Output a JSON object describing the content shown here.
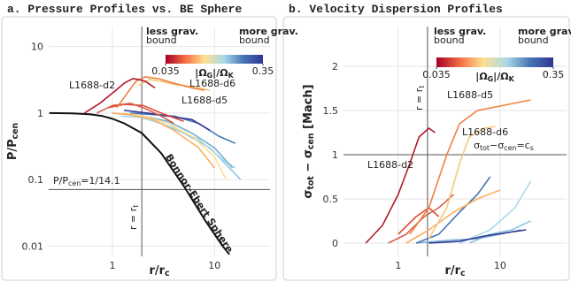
{
  "chart_data": [
    {
      "type": "line",
      "title": "a. Pressure Profiles vs. BE Sphere",
      "x_label": [
        "r/r",
        "c"
      ],
      "y_label": [
        "P/P",
        "cen"
      ],
      "log_x": true,
      "log_y": true,
      "grid": true,
      "xlim": [
        0.237,
        35
      ],
      "ylim": [
        0.007,
        20
      ],
      "xticks": [
        1,
        10
      ],
      "yticks": [
        0.01,
        0.1,
        1,
        10
      ],
      "vline": {
        "value": 1.94,
        "label": [
          "r = r",
          "t"
        ]
      },
      "hline": {
        "value": 0.0709,
        "label": [
          "P/P",
          "cen",
          "=1/14.1"
        ]
      },
      "colorbar": {
        "colors": [
          "#a50026",
          "#f46d43",
          "#fee090",
          "#abd9e9",
          "#4575b4",
          "#313695"
        ],
        "lim": [
          0.035,
          0.35
        ],
        "ticks": [
          0.035,
          0.35
        ],
        "left_label": [
          "less grav.",
          "bound"
        ],
        "right_label": [
          "more grav.",
          "bound"
        ],
        "label": [
          "|Ω",
          "G",
          "|/Ω",
          "K"
        ]
      },
      "annotations": [
        {
          "text": "L1688-d2",
          "color": "#b2182b"
        },
        {
          "text": "L1688-d6",
          "color": "#f6c87a"
        },
        {
          "text": "L1688-d5",
          "color": "#f08040"
        },
        {
          "text": "Bonnor-Ebert Sphere",
          "color": "#111111"
        }
      ],
      "series": [
        {
          "color": "#111111",
          "x": [
            0.24,
            0.4,
            0.6,
            0.8,
            1,
            1.3,
            1.94,
            3,
            5,
            8,
            12,
            14
          ],
          "values": [
            1,
            0.99,
            0.96,
            0.9,
            0.82,
            0.7,
            0.5,
            0.25,
            0.08,
            0.025,
            0.01,
            0.0075
          ]
        },
        {
          "color": "#92c5de",
          "x": [
            1.5,
            3,
            5,
            9,
            14,
            18
          ],
          "values": [
            0.95,
            0.7,
            0.5,
            0.3,
            0.15,
            0.1
          ]
        },
        {
          "color": "#abd9e9",
          "x": [
            1.2,
            2,
            4,
            7,
            12,
            16
          ],
          "values": [
            0.9,
            0.85,
            0.6,
            0.4,
            0.2,
            0.15
          ]
        },
        {
          "color": "#74add1",
          "x": [
            1,
            2,
            3.5,
            6,
            10,
            15
          ],
          "values": [
            1.0,
            0.9,
            0.75,
            0.5,
            0.3,
            0.15
          ]
        },
        {
          "color": "#4575b4",
          "x": [
            1.5,
            2.5,
            4,
            7,
            11,
            16
          ],
          "values": [
            1.0,
            0.95,
            0.9,
            0.7,
            0.45,
            0.35
          ]
        },
        {
          "color": "#313695",
          "x": [
            1.3,
            2.2,
            3.5,
            6,
            9
          ],
          "values": [
            1.1,
            1.0,
            0.9,
            0.8,
            0.55
          ]
        },
        {
          "color": "#fee090",
          "x": [
            1.3,
            2,
            3.5,
            6,
            10,
            13
          ],
          "values": [
            1.0,
            0.9,
            0.7,
            0.45,
            0.22,
            0.1
          ]
        },
        {
          "color": "#fdae61",
          "x": [
            1,
            1.5,
            2.5,
            4,
            7,
            10
          ],
          "values": [
            1.0,
            0.95,
            0.8,
            0.55,
            0.3,
            0.15
          ]
        },
        {
          "color": "#e34a33",
          "x": [
            0.9,
            1.3,
            2,
            3,
            5
          ],
          "values": [
            1.2,
            1.35,
            1.3,
            1.0,
            0.75
          ]
        },
        {
          "color": "#d6604d",
          "x": [
            0.7,
            1,
            1.5,
            2,
            3,
            4
          ],
          "values": [
            1.0,
            1.3,
            1.4,
            1.2,
            0.9,
            0.7
          ]
        },
        {
          "color": "#f6c87a",
          "x": [
            1.8,
            2.3,
            3,
            4,
            6,
            9
          ],
          "values": [
            2.6,
            3.2,
            3.0,
            2.7,
            2.5,
            2.2
          ]
        },
        {
          "color": "#f08040",
          "x": [
            1.1,
            1.4,
            1.7,
            2.1,
            2.8,
            4,
            6,
            8
          ],
          "values": [
            1.2,
            2.0,
            3.0,
            3.5,
            3.3,
            2.8,
            2.4,
            2.2
          ]
        },
        {
          "color": "#b2182b",
          "x": [
            0.53,
            0.75,
            1.0,
            1.3,
            1.58,
            1.8,
            2.1,
            2.6
          ],
          "values": [
            1.0,
            1.4,
            2.0,
            2.8,
            3.3,
            3.2,
            3.0,
            2.4
          ]
        }
      ]
    },
    {
      "type": "line",
      "title": "b. Velocity Dispersion Profiles",
      "x_label": [
        "r/r",
        "c"
      ],
      "y_label": [
        "σ",
        "tot",
        " − σ",
        "cen",
        " [Mach]"
      ],
      "log_x": true,
      "log_y": false,
      "grid": true,
      "xlim": [
        0.29,
        45
      ],
      "ylim": [
        -0.15,
        2.45
      ],
      "xticks": [
        1,
        10
      ],
      "yticks": [
        0,
        0.5,
        1,
        1.5,
        2
      ],
      "vline": {
        "value": 1.94,
        "label": [
          "r = r",
          "t"
        ]
      },
      "hline": {
        "value": 1,
        "label": [
          "σ",
          "tot",
          "−σ",
          "cen",
          "=c",
          "s"
        ]
      },
      "colorbar": {
        "colors": [
          "#a50026",
          "#f46d43",
          "#fee090",
          "#abd9e9",
          "#4575b4",
          "#313695"
        ],
        "lim": [
          0.035,
          0.35
        ],
        "ticks": [
          0.035,
          0.35
        ],
        "left_label": [
          "less grav.",
          "bound"
        ],
        "right_label": [
          "more grav.",
          "bound"
        ],
        "label": [
          "|Ω",
          "G",
          "|/Ω",
          "K"
        ]
      },
      "annotations": [
        {
          "text": "L1688-d2",
          "color": "#b2182b"
        },
        {
          "text": "L1688-d5",
          "color": "#f08040"
        },
        {
          "text": "L1688-d6",
          "color": "#f6c87a"
        }
      ],
      "series": [
        {
          "color": "#92c5de",
          "x": [
            5,
            8,
            13,
            20
          ],
          "values": [
            0,
            0.1,
            0.15,
            0.25
          ]
        },
        {
          "color": "#abd9e9",
          "x": [
            4,
            8,
            14,
            20
          ],
          "values": [
            0,
            0.15,
            0.4,
            0.7
          ]
        },
        {
          "color": "#74add1",
          "x": [
            1.5,
            3,
            6,
            10,
            16
          ],
          "values": [
            0,
            0.03,
            0.05,
            0.1,
            0.15
          ]
        },
        {
          "color": "#313695",
          "x": [
            2,
            4,
            7,
            12,
            18
          ],
          "values": [
            0,
            0.02,
            0.08,
            0.12,
            0.15
          ]
        },
        {
          "color": "#4575b4",
          "x": [
            1.5,
            2.5,
            4,
            6,
            8
          ],
          "values": [
            0,
            0.1,
            0.35,
            0.55,
            0.75
          ]
        },
        {
          "color": "#fdae61",
          "x": [
            1.2,
            2,
            3.5,
            6,
            10
          ],
          "values": [
            0,
            0.15,
            0.35,
            0.5,
            0.6
          ]
        },
        {
          "color": "#e34a33",
          "x": [
            1,
            1.5,
            2,
            2.5
          ],
          "values": [
            0.1,
            0.3,
            0.4,
            0.3
          ]
        },
        {
          "color": "#d6604d",
          "x": [
            0.8,
            1.2,
            1.8,
            2.5,
            3.5
          ],
          "values": [
            0,
            0.1,
            0.3,
            0.4,
            0.55
          ]
        },
        {
          "color": "#f6c87a",
          "x": [
            2,
            3,
            4,
            5,
            7,
            9
          ],
          "values": [
            0.05,
            0.4,
            0.9,
            1.2,
            1.3,
            1.32
          ]
        },
        {
          "color": "#f08040",
          "x": [
            1.3,
            2,
            3,
            4,
            6,
            10,
            20
          ],
          "values": [
            0.1,
            0.4,
            1.0,
            1.35,
            1.5,
            1.55,
            1.62
          ]
        },
        {
          "color": "#b2182b",
          "x": [
            0.48,
            0.7,
            1.0,
            1.3,
            1.6,
            2.0,
            2.3
          ],
          "values": [
            0,
            0.2,
            0.55,
            0.9,
            1.2,
            1.3,
            1.25
          ]
        }
      ]
    }
  ]
}
